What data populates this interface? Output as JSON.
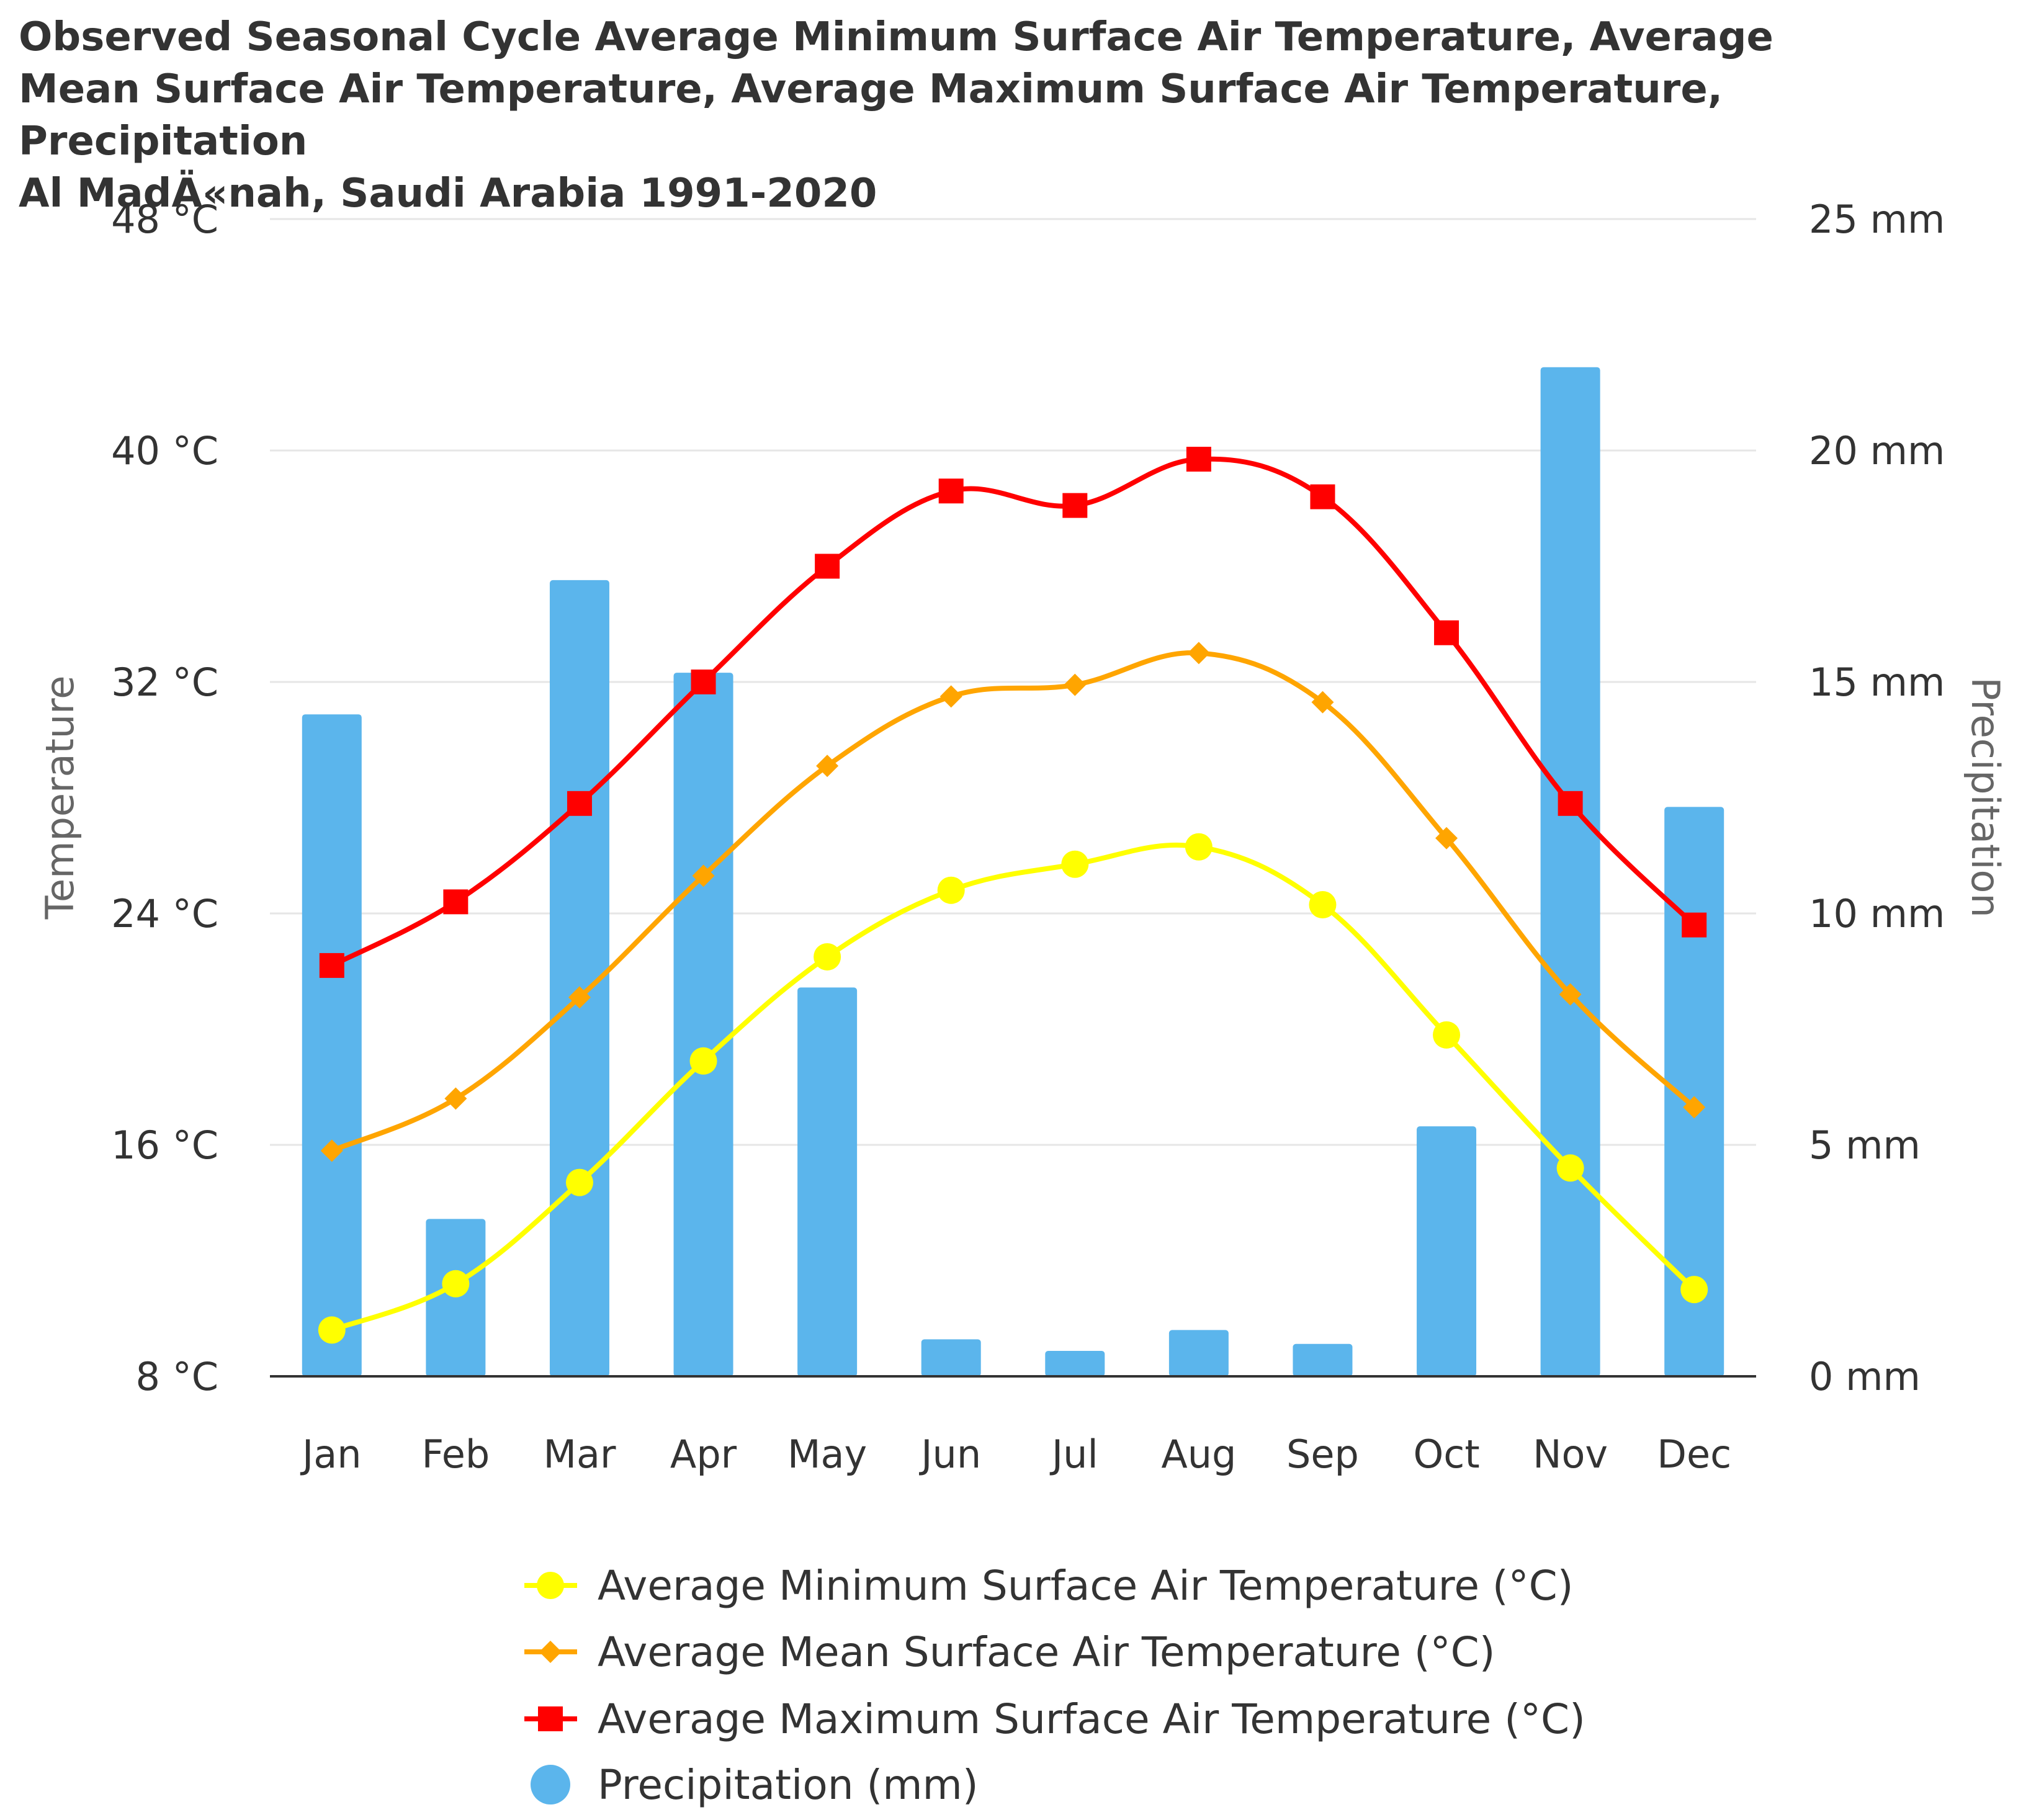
{
  "chart_data": {
    "type": "bar+line",
    "title": "Observed Seasonal Cycle Average Minimum Surface Air Temperature, Average\nMean Surface Air Temperature, Average Maximum Surface Air Temperature, Precipitation\n Al MadÄ«nah, Saudi Arabia 1991-2020",
    "categories": [
      "Jan",
      "Feb",
      "Mar",
      "Apr",
      "May",
      "Jun",
      "Jul",
      "Aug",
      "Sep",
      "Oct",
      "Nov",
      "Dec"
    ],
    "left_axis": {
      "title": "Temperature",
      "range": [
        8,
        48
      ],
      "ticks": [
        "8 °C",
        "16 °C",
        "24 °C",
        "32 °C",
        "40 °C",
        "48 °C"
      ]
    },
    "right_axis": {
      "title": "Precipitation",
      "range": [
        0,
        25
      ],
      "ticks": [
        "0 mm",
        "5 mm",
        "10 mm",
        "15 mm",
        "20 mm",
        "25 mm"
      ]
    },
    "series": [
      {
        "name": "Average Minimum Surface Air Temperature (°C)",
        "type": "line",
        "axis": "left",
        "color": "#ffff00",
        "marker": "circle",
        "values": [
          9.6,
          11.2,
          14.7,
          18.9,
          22.5,
          24.8,
          25.7,
          26.3,
          24.3,
          19.8,
          15.2,
          11.0
        ]
      },
      {
        "name": "Average Mean Surface Air Temperature (°C)",
        "type": "line",
        "axis": "left",
        "color": "#ffa500",
        "marker": "diamond",
        "values": [
          15.8,
          17.6,
          21.1,
          25.3,
          29.1,
          31.5,
          31.9,
          33.0,
          31.3,
          26.6,
          21.2,
          17.3
        ]
      },
      {
        "name": "Average Maximum Surface Air Temperature (°C)",
        "type": "line",
        "axis": "left",
        "color": "#ff0000",
        "marker": "square",
        "values": [
          22.2,
          24.4,
          27.8,
          32.0,
          36.0,
          38.6,
          38.1,
          39.7,
          38.4,
          33.7,
          27.8,
          23.6
        ]
      },
      {
        "name": "Precipitation (mm)",
        "type": "bar",
        "axis": "right",
        "color": "#5bb5ec",
        "marker": "circle",
        "values": [
          14.3,
          3.4,
          17.2,
          15.2,
          8.4,
          0.8,
          0.55,
          1.0,
          0.7,
          5.4,
          21.8,
          12.3
        ]
      }
    ],
    "grid": true,
    "legend_position": "bottom"
  }
}
